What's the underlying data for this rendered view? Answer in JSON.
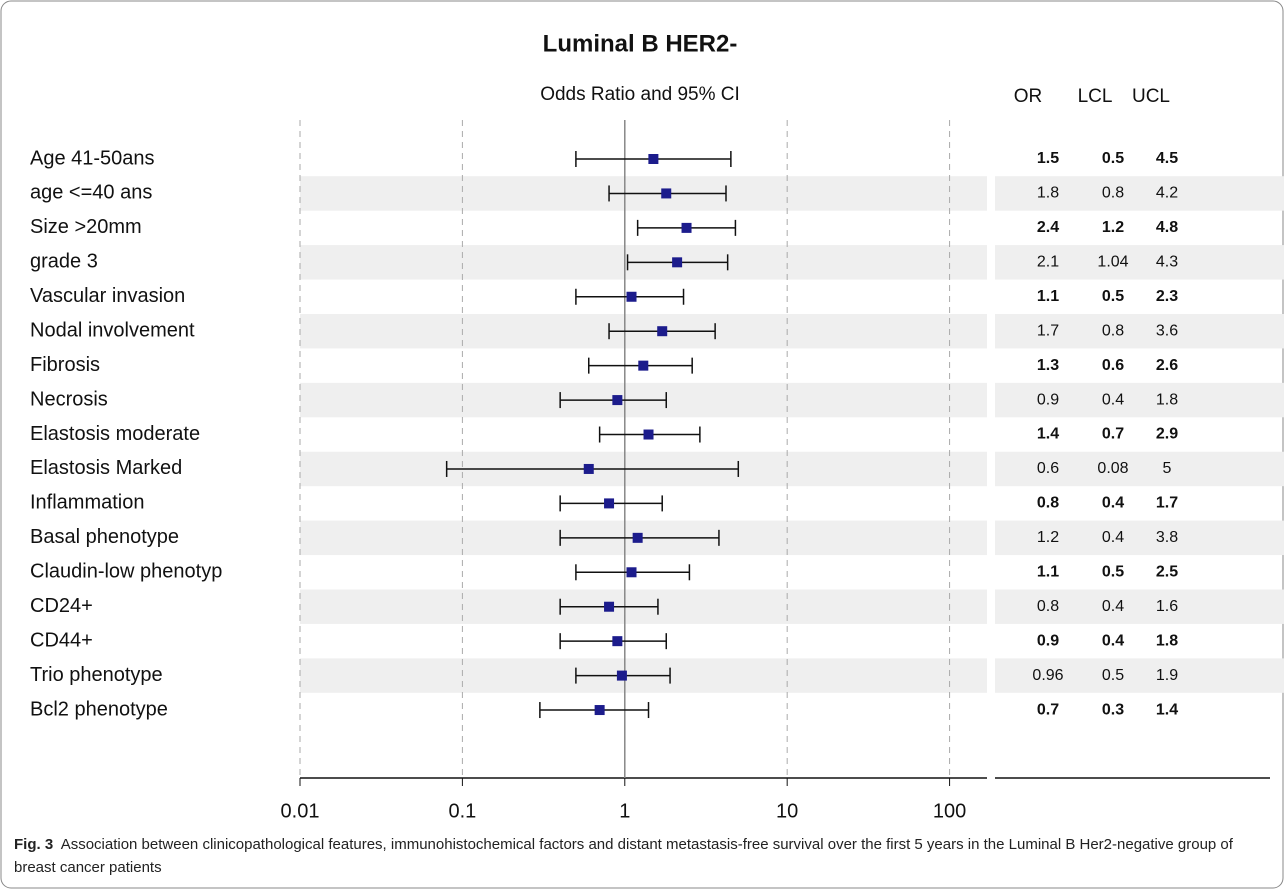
{
  "chart_data": {
    "type": "forest",
    "title": "Luminal B HER2-",
    "subtitle": "Odds Ratio and 95% CI",
    "categories": [
      "Age 41-50ans",
      "age <=40 ans",
      "Size >20mm",
      "grade 3",
      "Vascular invasion",
      "Nodal involvement",
      "Fibrosis",
      "Necrosis",
      "Elastosis moderate",
      "Elastosis Marked",
      "Inflammation",
      "Basal phenotype",
      "Claudin-low phenotyp",
      "CD24+",
      "CD44+",
      "Trio phenotype",
      "Bcl2 phenotype"
    ],
    "values": [
      1.5,
      1.8,
      2.4,
      2.1,
      1.1,
      1.7,
      1.3,
      0.9,
      1.4,
      0.6,
      0.8,
      1.2,
      1.1,
      0.8,
      0.9,
      0.96,
      0.7
    ],
    "lower": [
      0.5,
      0.8,
      1.2,
      1.04,
      0.5,
      0.8,
      0.6,
      0.4,
      0.7,
      0.08,
      0.4,
      0.4,
      0.5,
      0.4,
      0.4,
      0.5,
      0.3
    ],
    "upper": [
      4.5,
      4.2,
      4.8,
      4.3,
      2.3,
      3.6,
      2.6,
      1.8,
      2.9,
      5,
      1.7,
      3.8,
      2.5,
      1.6,
      1.8,
      1.9,
      1.4
    ],
    "table_headers": [
      "OR",
      "LCL",
      "UCL"
    ],
    "color": "#1c1c8c",
    "log_scale": true,
    "reference": 1,
    "xlim": [
      0.01,
      170
    ],
    "xticks": [
      0.01,
      0.1,
      1,
      10,
      100
    ],
    "grid": true
  },
  "caption_label": "Fig. 3",
  "caption": "Association between clinicopathological features, immunohistochemical factors and distant metastasis-free survival over the first 5 years in the Luminal B Her2-negative group of breast cancer patients"
}
